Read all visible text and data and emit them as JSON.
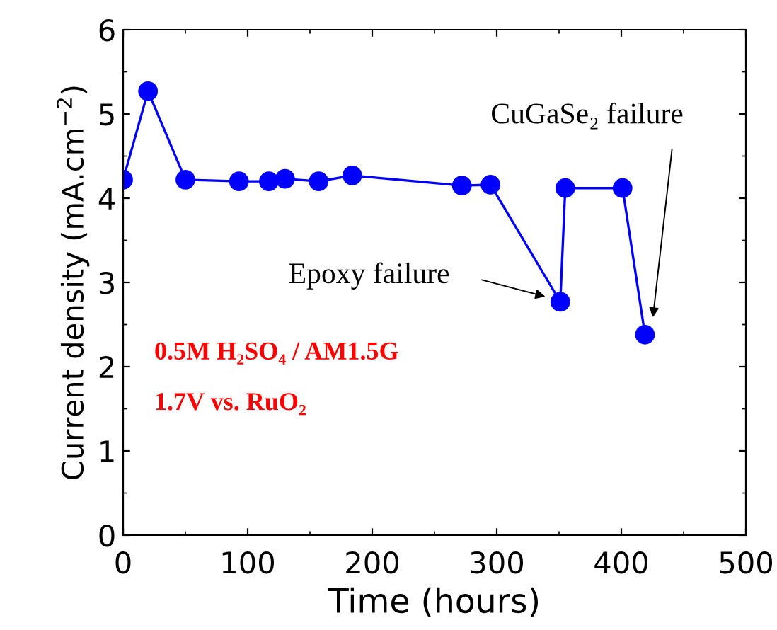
{
  "chart_data": {
    "type": "line",
    "xlabel": "Time (hours)",
    "ylabel": "Current density (mA.cm$^{−2}$)",
    "x": [
      0,
      20,
      50,
      93,
      117,
      130,
      157,
      184,
      272,
      295,
      351,
      355,
      401,
      419
    ],
    "series": [
      {
        "color": "#0000ff",
        "values": [
          4.22,
          5.27,
          4.22,
          4.2,
          4.2,
          4.23,
          4.2,
          4.27,
          4.15,
          4.16,
          2.77,
          4.12,
          4.12,
          2.38
        ]
      }
    ],
    "xlim": [
      0,
      500
    ],
    "xticks": [
      0,
      100,
      200,
      300,
      400,
      500
    ],
    "ylim": [
      0,
      6
    ],
    "yticks": [
      0,
      1,
      2,
      3,
      4,
      5,
      6
    ],
    "marker": "circle",
    "line_style": "solid",
    "grid": false,
    "legend": false,
    "annotations": [
      "Epoxy failure",
      "CuGaSe₂ failure",
      "0.5M H₂SO₄ / AM1.5G",
      "1.7V vs. RuO₂"
    ]
  }
}
